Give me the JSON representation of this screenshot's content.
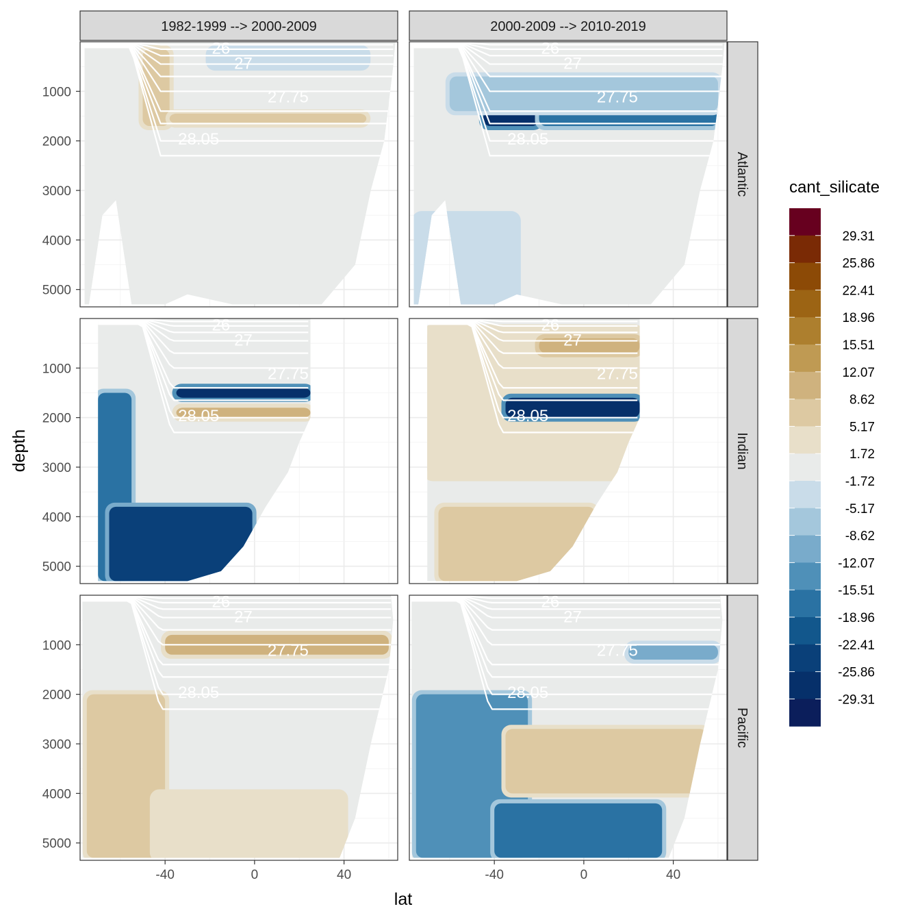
{
  "chart_data": {
    "type": "heatmap",
    "description_variable": "cant_silicate",
    "xlabel": "lat",
    "ylabel": "depth",
    "x_ticks": [
      -40,
      0,
      40
    ],
    "x_tick_labels": [
      "-40",
      "0",
      "40"
    ],
    "y_ticks": [
      1000,
      2000,
      3000,
      4000,
      5000
    ],
    "y_tick_labels": [
      "1000",
      "2000",
      "3000",
      "4000",
      "5000"
    ],
    "xlim": [
      -78,
      64
    ],
    "ylim": [
      5350,
      0
    ],
    "columns": [
      "1982-1999 --> 2000-2009",
      "2000-2009 --> 2010-2019"
    ],
    "rows": [
      "Atlantic",
      "Indian",
      "Pacific"
    ],
    "legend": {
      "title": "cant_silicate",
      "breaks": [
        "29.31",
        "25.86",
        "22.41",
        "18.96",
        "15.51",
        "12.07",
        "8.62",
        "5.17",
        "1.72",
        "-1.72",
        "-5.17",
        "-8.62",
        "-12.07",
        "-15.51",
        "-18.96",
        "-22.41",
        "-25.86",
        "-29.31"
      ],
      "colors": [
        "#67001f",
        "#7a2a05",
        "#8c4a06",
        "#9c6414",
        "#ad7f2e",
        "#bf9a53",
        "#cfb27e",
        "#ddc9a2",
        "#e8dfc9",
        "#e9ebea",
        "#c9dce9",
        "#a4c7dc",
        "#79abcb",
        "#4f90b8",
        "#2a72a3",
        "#12578c",
        "#0a4079",
        "#06306a",
        "#0b1e5b"
      ]
    },
    "isopycnal_labels": [
      "26",
      "27",
      "27.75",
      "28.05"
    ],
    "panels": [
      {
        "row": "Atlantic",
        "column": "1982-1999 --> 2000-2009",
        "features": [
          {
            "lat": [
              -50,
              -38
            ],
            "depth": [
              150,
              1700
            ],
            "value": 8
          },
          {
            "lat": [
              -38,
              50
            ],
            "depth": [
              1450,
              1650
            ],
            "value": 6
          },
          {
            "lat": [
              -20,
              50
            ],
            "depth": [
              150,
              500
            ],
            "value": -4
          }
        ]
      },
      {
        "row": "Atlantic",
        "column": "2000-2009 --> 2010-2019",
        "features": [
          {
            "lat": [
              -45,
              -20
            ],
            "depth": [
              1400,
              1700
            ],
            "value": -27
          },
          {
            "lat": [
              -20,
              60
            ],
            "depth": [
              1300,
              1700
            ],
            "value": -18
          },
          {
            "lat": [
              -60,
              60
            ],
            "depth": [
              700,
              1400
            ],
            "value": -8
          },
          {
            "lat": [
              -75,
              -30
            ],
            "depth": [
              3500,
              5300
            ],
            "value": -4
          }
        ]
      },
      {
        "row": "Indian",
        "column": "1982-1999 --> 2000-2009",
        "features": [
          {
            "lat": [
              -70,
              -55
            ],
            "depth": [
              1500,
              5300
            ],
            "value": -18
          },
          {
            "lat": [
              -65,
              -1
            ],
            "depth": [
              3800,
              5300
            ],
            "value": -24
          },
          {
            "lat": [
              -35,
              25
            ],
            "depth": [
              1400,
              1600
            ],
            "value": -28
          },
          {
            "lat": [
              -35,
              25
            ],
            "depth": [
              1800,
              2000
            ],
            "value": 10
          }
        ]
      },
      {
        "row": "Indian",
        "column": "2000-2009 --> 2010-2019",
        "features": [
          {
            "lat": [
              -70,
              25
            ],
            "depth": [
              200,
              3200
            ],
            "value": 4
          },
          {
            "lat": [
              -35,
              25
            ],
            "depth": [
              1600,
              2000
            ],
            "value": -28
          },
          {
            "lat": [
              -65,
              5
            ],
            "depth": [
              3800,
              5300
            ],
            "value": 8
          },
          {
            "lat": [
              -20,
              25
            ],
            "depth": [
              400,
              700
            ],
            "value": 12
          }
        ]
      },
      {
        "row": "Pacific",
        "column": "1982-1999 --> 2000-2009",
        "features": [
          {
            "lat": [
              -40,
              60
            ],
            "depth": [
              800,
              1200
            ],
            "value": 10
          },
          {
            "lat": [
              -75,
              -40
            ],
            "depth": [
              2000,
              5300
            ],
            "value": 8
          },
          {
            "lat": [
              -45,
              40
            ],
            "depth": [
              4000,
              5300
            ],
            "value": 4
          }
        ]
      },
      {
        "row": "Pacific",
        "column": "2000-2009 --> 2010-2019",
        "features": [
          {
            "lat": [
              -75,
              -25
            ],
            "depth": [
              2000,
              5300
            ],
            "value": -14
          },
          {
            "lat": [
              -40,
              35
            ],
            "depth": [
              4200,
              5300
            ],
            "value": -18
          },
          {
            "lat": [
              -35,
              55
            ],
            "depth": [
              2700,
              4000
            ],
            "value": 8
          },
          {
            "lat": [
              20,
              60
            ],
            "depth": [
              1000,
              1300
            ],
            "value": -10
          }
        ]
      }
    ]
  }
}
